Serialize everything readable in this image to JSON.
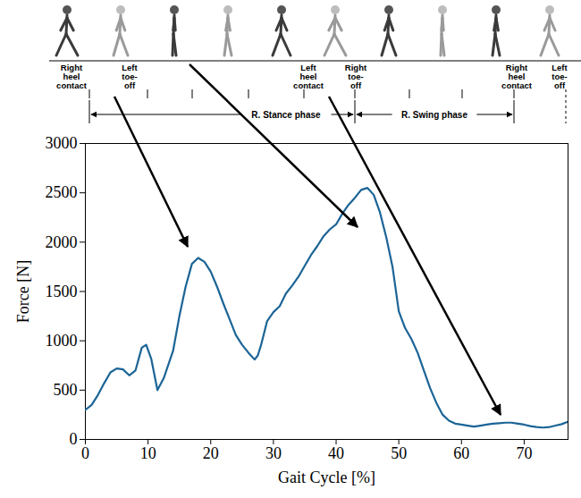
{
  "chart_data": {
    "type": "line",
    "xlabel": "Gait Cycle [%]",
    "ylabel": "Force [N]",
    "x": [
      0,
      1,
      2,
      3,
      4,
      5,
      6,
      7,
      8,
      9,
      9.7,
      10.5,
      11.5,
      12.5,
      14,
      15,
      16,
      17,
      18,
      19,
      20,
      21,
      22,
      23,
      24,
      25,
      26,
      27,
      27.5,
      28,
      29,
      30,
      31,
      32,
      33,
      34,
      35,
      36,
      37,
      38,
      39,
      40,
      41,
      42,
      43,
      44,
      45,
      46,
      47,
      48,
      49,
      50,
      51,
      52,
      53,
      54,
      55,
      56,
      57,
      58,
      59,
      60,
      61,
      62,
      63,
      64,
      65,
      66,
      67,
      68,
      69,
      70,
      71,
      72,
      73,
      74,
      75,
      76,
      77
    ],
    "values": [
      300,
      350,
      450,
      570,
      680,
      720,
      710,
      650,
      700,
      930,
      960,
      820,
      500,
      620,
      900,
      1250,
      1550,
      1780,
      1840,
      1800,
      1700,
      1550,
      1380,
      1220,
      1060,
      960,
      880,
      810,
      850,
      950,
      1200,
      1290,
      1350,
      1480,
      1560,
      1650,
      1760,
      1870,
      1960,
      2060,
      2130,
      2180,
      2290,
      2380,
      2450,
      2530,
      2550,
      2480,
      2300,
      2050,
      1750,
      1300,
      1130,
      1020,
      880,
      700,
      520,
      370,
      250,
      190,
      160,
      150,
      140,
      130,
      140,
      150,
      160,
      165,
      170,
      170,
      160,
      150,
      135,
      125,
      120,
      125,
      140,
      155,
      180
    ],
    "color": "#1b6496",
    "xlim": [
      0,
      77
    ],
    "xticks": [
      0,
      10,
      20,
      30,
      40,
      50,
      60,
      70
    ],
    "ylim": [
      0,
      3000
    ],
    "yticks": [
      0,
      500,
      1000,
      1500,
      2000,
      2500,
      3000
    ]
  },
  "gait_diagram": {
    "events": [
      "Right heel contact",
      "Left toe-off",
      "Left heel contact",
      "Right toe-off",
      "Right heel contact",
      "Left toe-off"
    ],
    "phases": [
      "R. Stance phase",
      "R. Swing phase"
    ]
  }
}
